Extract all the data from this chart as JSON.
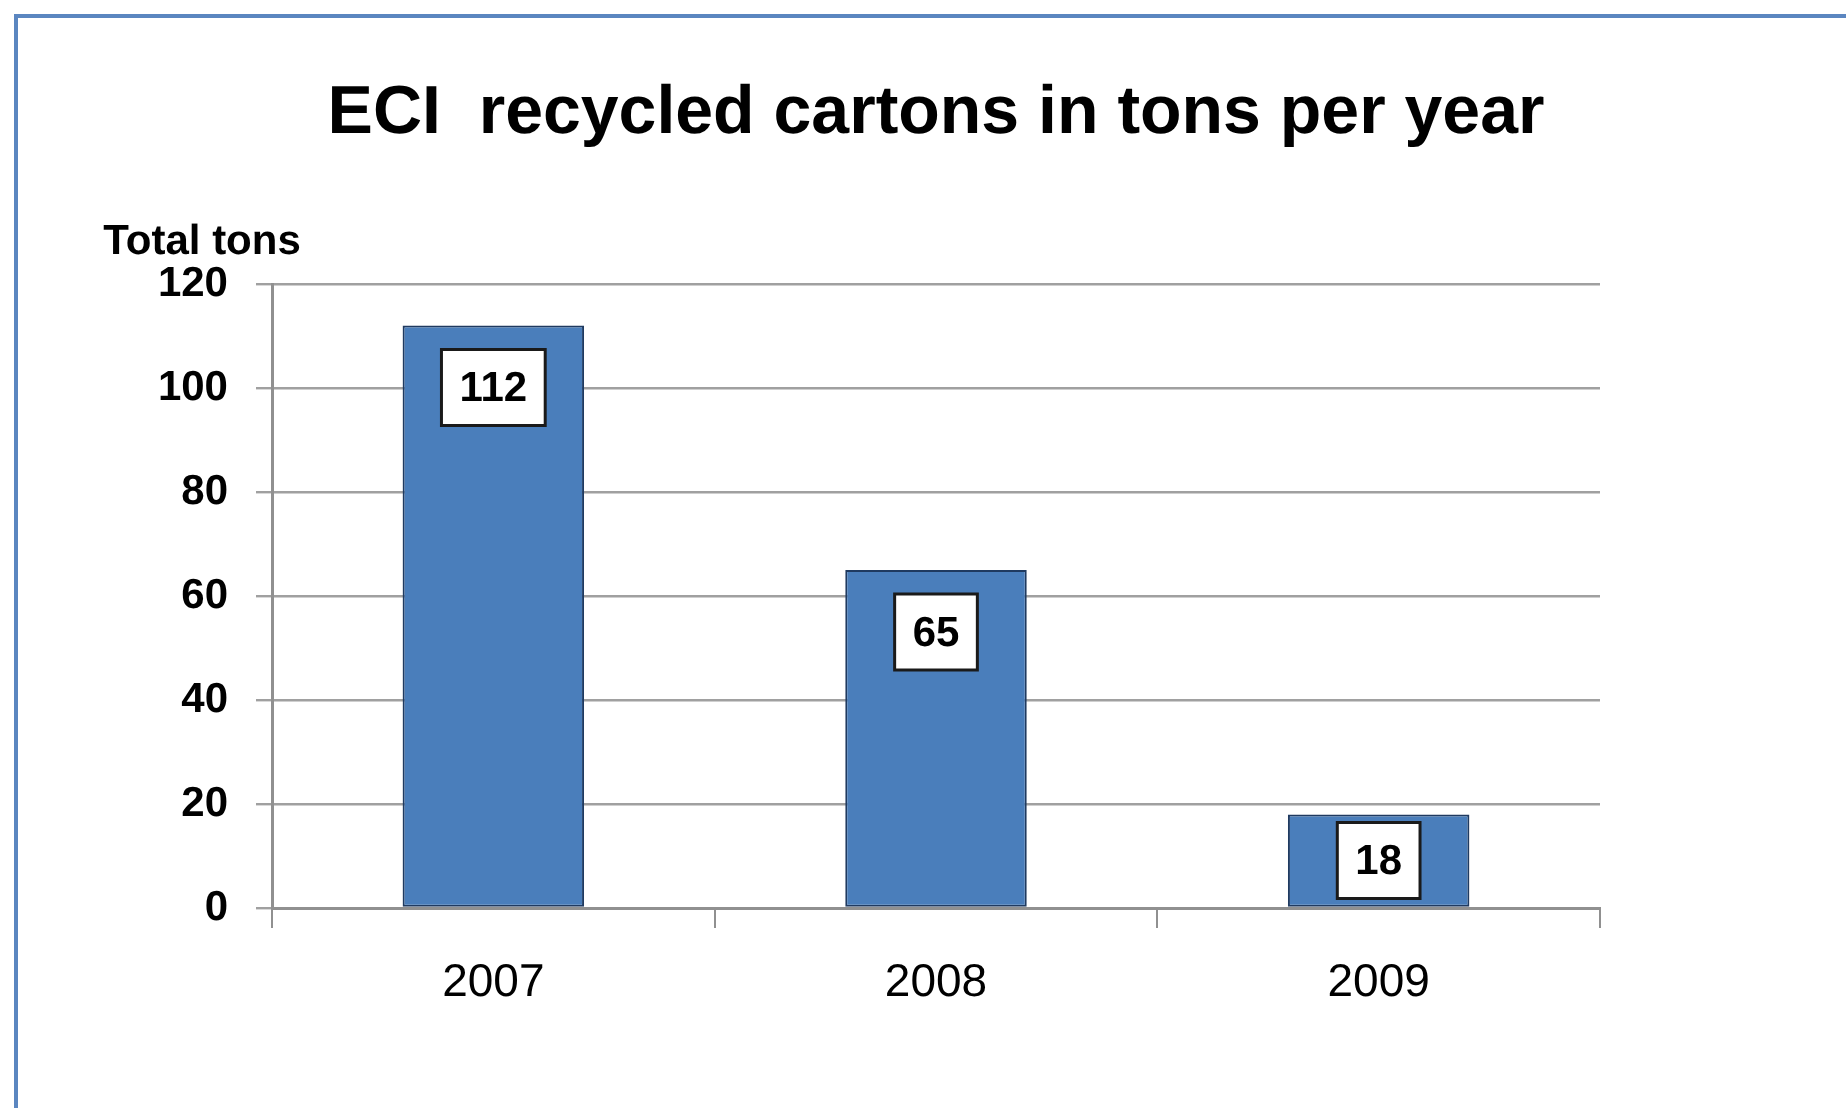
{
  "chart_data": {
    "type": "bar",
    "title": "ECI  recycled cartons in tons per year",
    "ylabel": "Total tons",
    "categories": [
      "2007",
      "2008",
      "2009"
    ],
    "values": [
      112,
      65,
      18
    ],
    "color": "#4a7ebb",
    "ylim": [
      0,
      120
    ],
    "yticks": [
      0,
      20,
      40,
      60,
      80,
      100,
      120
    ],
    "grid": "y",
    "data_labels": true
  }
}
